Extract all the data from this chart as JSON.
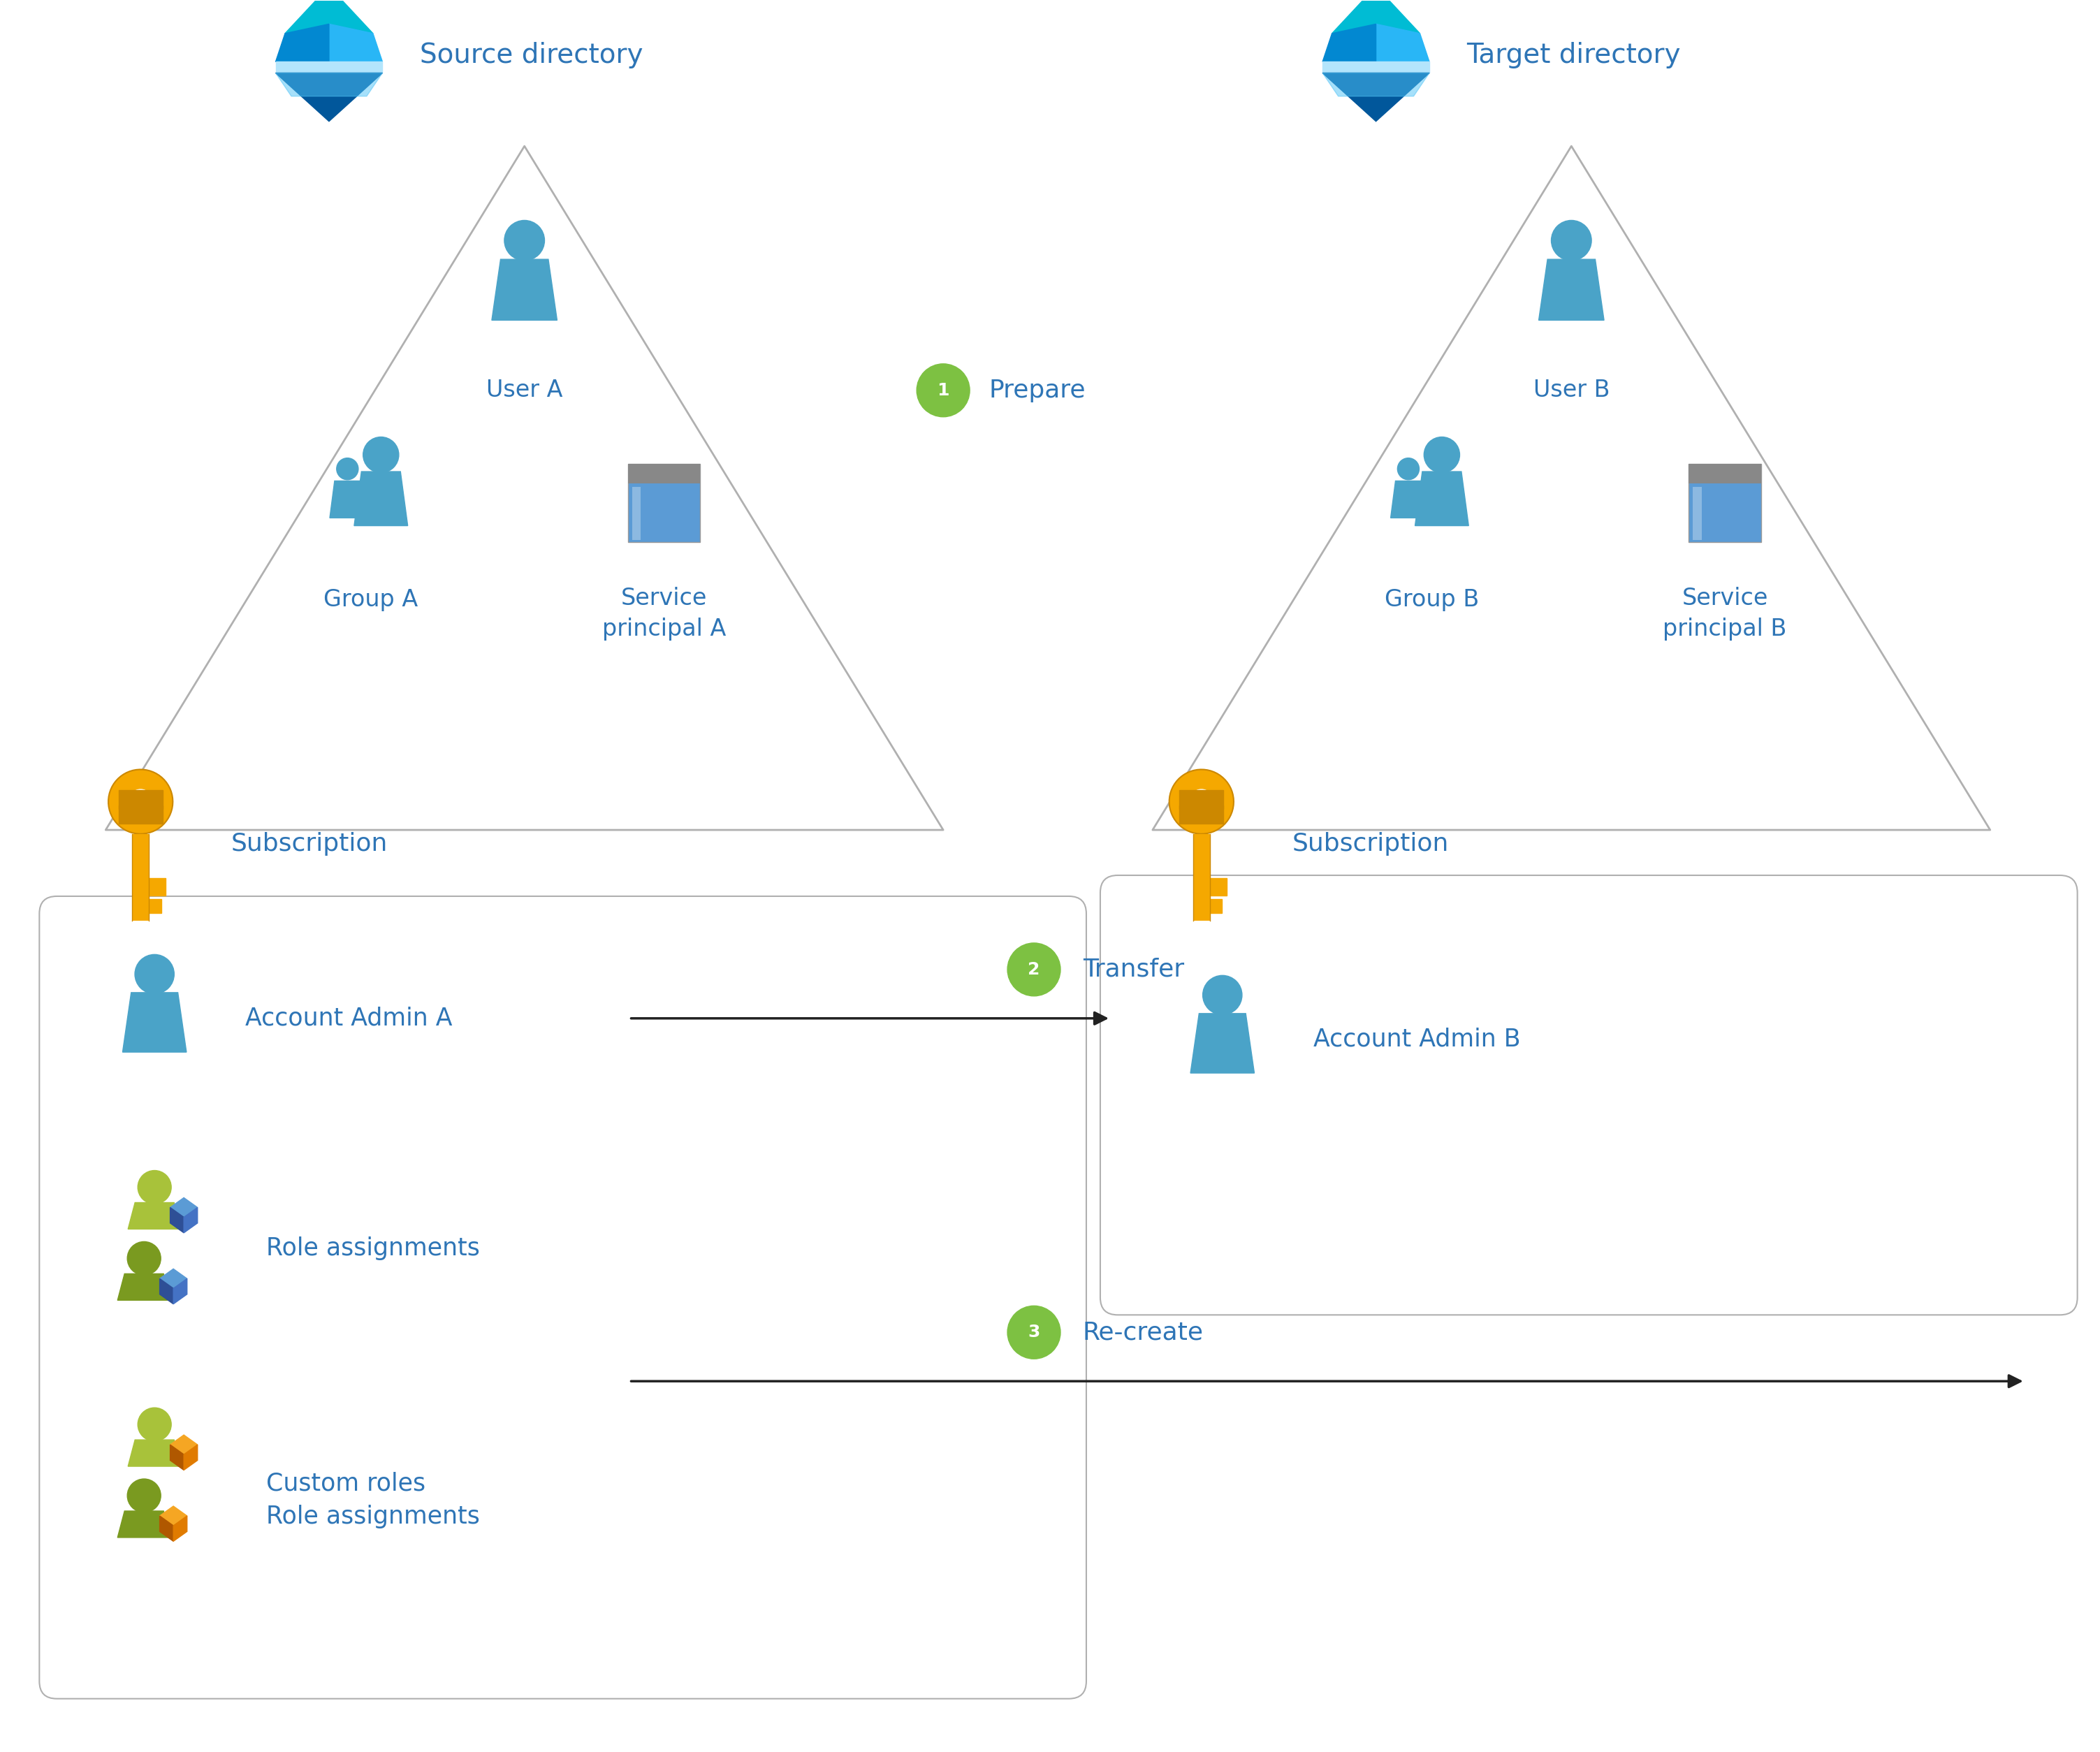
{
  "bg_color": "#ffffff",
  "label_blue": "#2E75B6",
  "triangle_color": "#b0b0b0",
  "green_circle_color": "#7DC142",
  "blue_icon": "#4AA3C8",
  "blue_icon_dark": "#3A8BB0",
  "key_gold": "#F5A800",
  "key_gold_dark": "#CC8800",
  "role_green_light": "#A8C23A",
  "role_green_dark": "#7A9A20",
  "cube_blue_top": "#5B9BD5",
  "cube_blue_front": "#4472C4",
  "cube_blue_side": "#2E4F96",
  "cube_orange_top": "#F5A623",
  "cube_orange_front": "#E07B00",
  "cube_orange_side": "#B05800",
  "source_dir_label": "Source directory",
  "target_dir_label": "Target directory",
  "user_a_label": "User A",
  "user_b_label": "User B",
  "group_a_label": "Group A",
  "group_b_label": "Group B",
  "sp_a_label": "Service\nprincipal A",
  "sp_b_label": "Service\nprincipal B",
  "subscription_label": "Subscription",
  "acct_admin_a_label": "Account Admin A",
  "acct_admin_b_label": "Account Admin B",
  "role_assign_label": "Role assignments",
  "custom_roles_label": "Custom roles\nRole assignments",
  "step1_label": "Prepare",
  "step2_label": "Transfer",
  "step3_label": "Re-create"
}
